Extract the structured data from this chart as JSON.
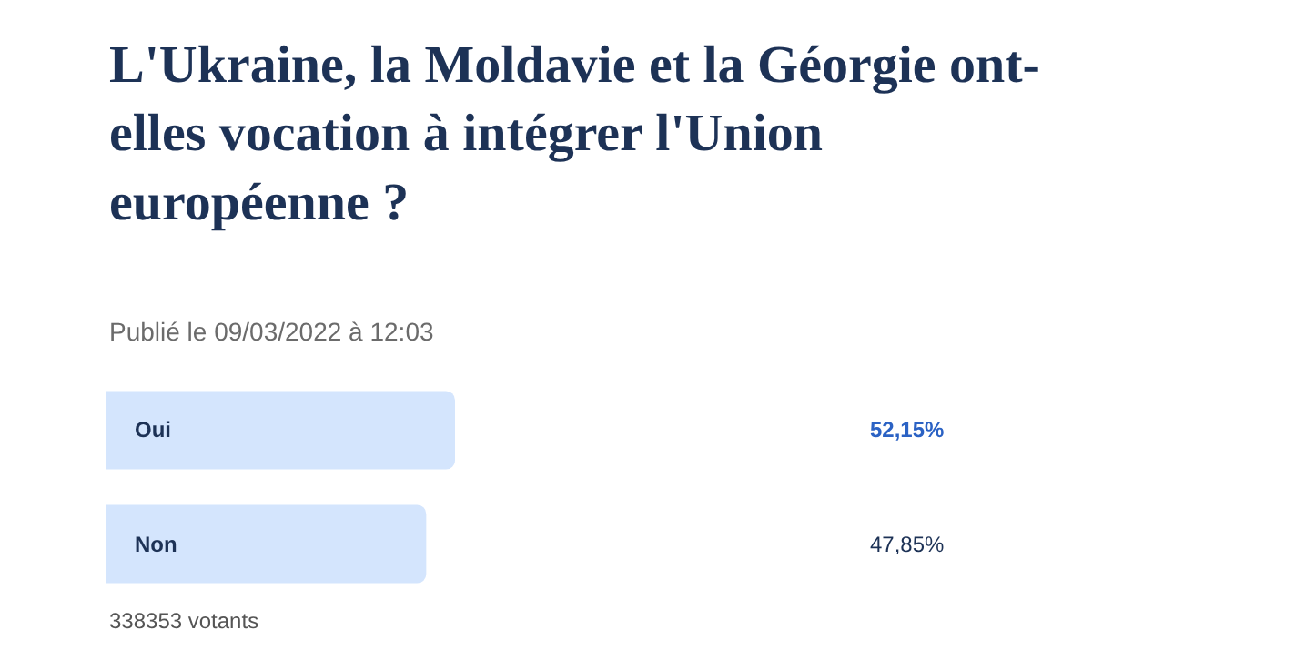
{
  "chart_data": {
    "type": "bar",
    "orientation": "horizontal",
    "title": "L'Ukraine, la Moldavie et la Géorgie ont-elles vocation à intégrer l'Union européenne ?",
    "subtitle": "Publié le 09/03/2022 à 12:03",
    "categories": [
      "Oui",
      "Non"
    ],
    "values": [
      52.15,
      47.85
    ],
    "colors": [
      "#d4e5fd",
      "#d4e5fd"
    ],
    "value_labels": [
      "52,15%",
      "47,85%"
    ],
    "annotations": [
      "338353 votants"
    ]
  }
}
